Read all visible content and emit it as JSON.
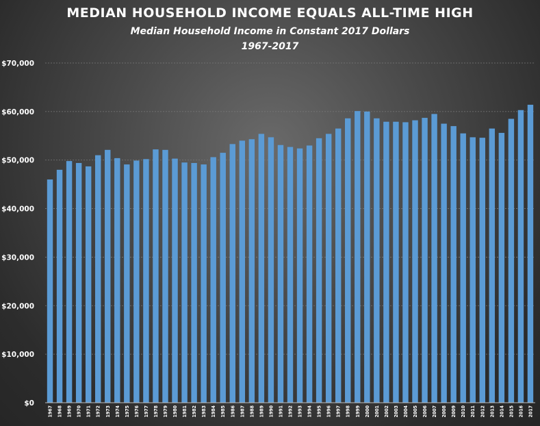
{
  "chart_data": {
    "type": "bar",
    "title": "MEDIAN HOUSEHOLD INCOME EQUALS ALL-TIME HIGH",
    "subtitle": "Median Household  Income  in Constant  2017 Dollars",
    "subtitle2": "1967-2017",
    "xlabel": "",
    "ylabel": "",
    "ylim": [
      0,
      70000
    ],
    "yticks": [
      0,
      10000,
      20000,
      30000,
      40000,
      50000,
      60000,
      70000
    ],
    "ytick_labels": [
      "$0",
      "$10,000",
      "$20,000",
      "$30,000",
      "$40,000",
      "$50,000",
      "$60,000",
      "$70,000"
    ],
    "grid": true,
    "bar_color": "#5b9bd5",
    "categories": [
      "1967",
      "1968",
      "1969",
      "1970",
      "1971",
      "1972",
      "1973",
      "1974",
      "1975",
      "1976",
      "1977",
      "1978",
      "1979",
      "1980",
      "1981",
      "1982",
      "1983",
      "1984",
      "1985",
      "1986",
      "1987",
      "1988",
      "1989",
      "1990",
      "1991",
      "1992",
      "1993",
      "1994",
      "1995",
      "1996",
      "1997",
      "1998",
      "1999",
      "2000",
      "2001",
      "2002",
      "2003",
      "2004",
      "2005",
      "2006",
      "2007",
      "2008",
      "2009",
      "2010",
      "2011",
      "2012",
      "2013",
      "2014",
      "2015",
      "2016",
      "2017"
    ],
    "values": [
      46000,
      48000,
      49800,
      49400,
      48700,
      51000,
      52100,
      50400,
      49100,
      49900,
      50200,
      52200,
      52100,
      50300,
      49500,
      49400,
      49100,
      50600,
      51500,
      53300,
      54000,
      54300,
      55400,
      54700,
      53100,
      52700,
      52400,
      53000,
      54500,
      55400,
      56500,
      58600,
      60100,
      60000,
      58600,
      57900,
      57900,
      57800,
      58200,
      58700,
      59500,
      57500,
      57000,
      55500,
      54700,
      54600,
      56500,
      55600,
      58500,
      60300,
      61400
    ]
  }
}
